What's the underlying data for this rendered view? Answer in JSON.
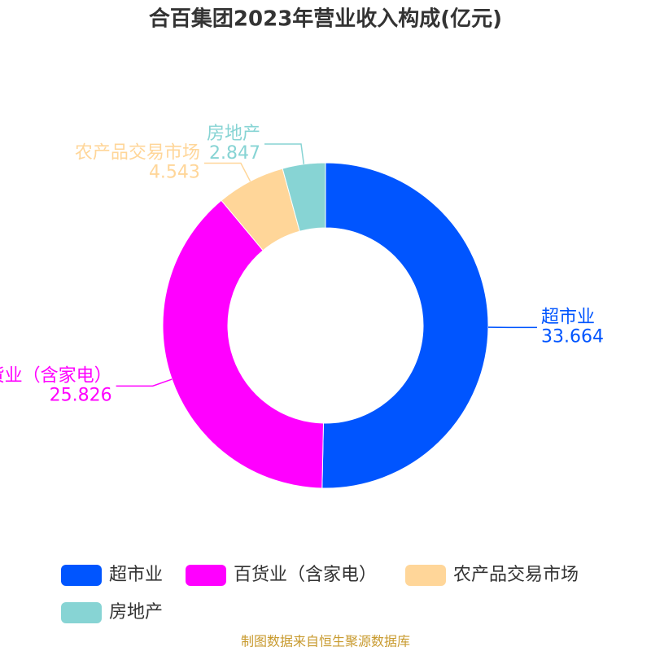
{
  "chart_data": {
    "type": "donut",
    "title": "合百集团2023年营业收入构成(亿元)",
    "categories": [
      "超市业",
      "百货业（含家电）",
      "农产品交易市场",
      "房地产"
    ],
    "values": [
      33.664,
      25.826,
      4.543,
      2.847
    ],
    "colors": [
      "#0055ff",
      "#ff00ff",
      "#ffd699",
      "#87d4d4"
    ],
    "source": "制图数据来自恒生聚源数据库"
  }
}
